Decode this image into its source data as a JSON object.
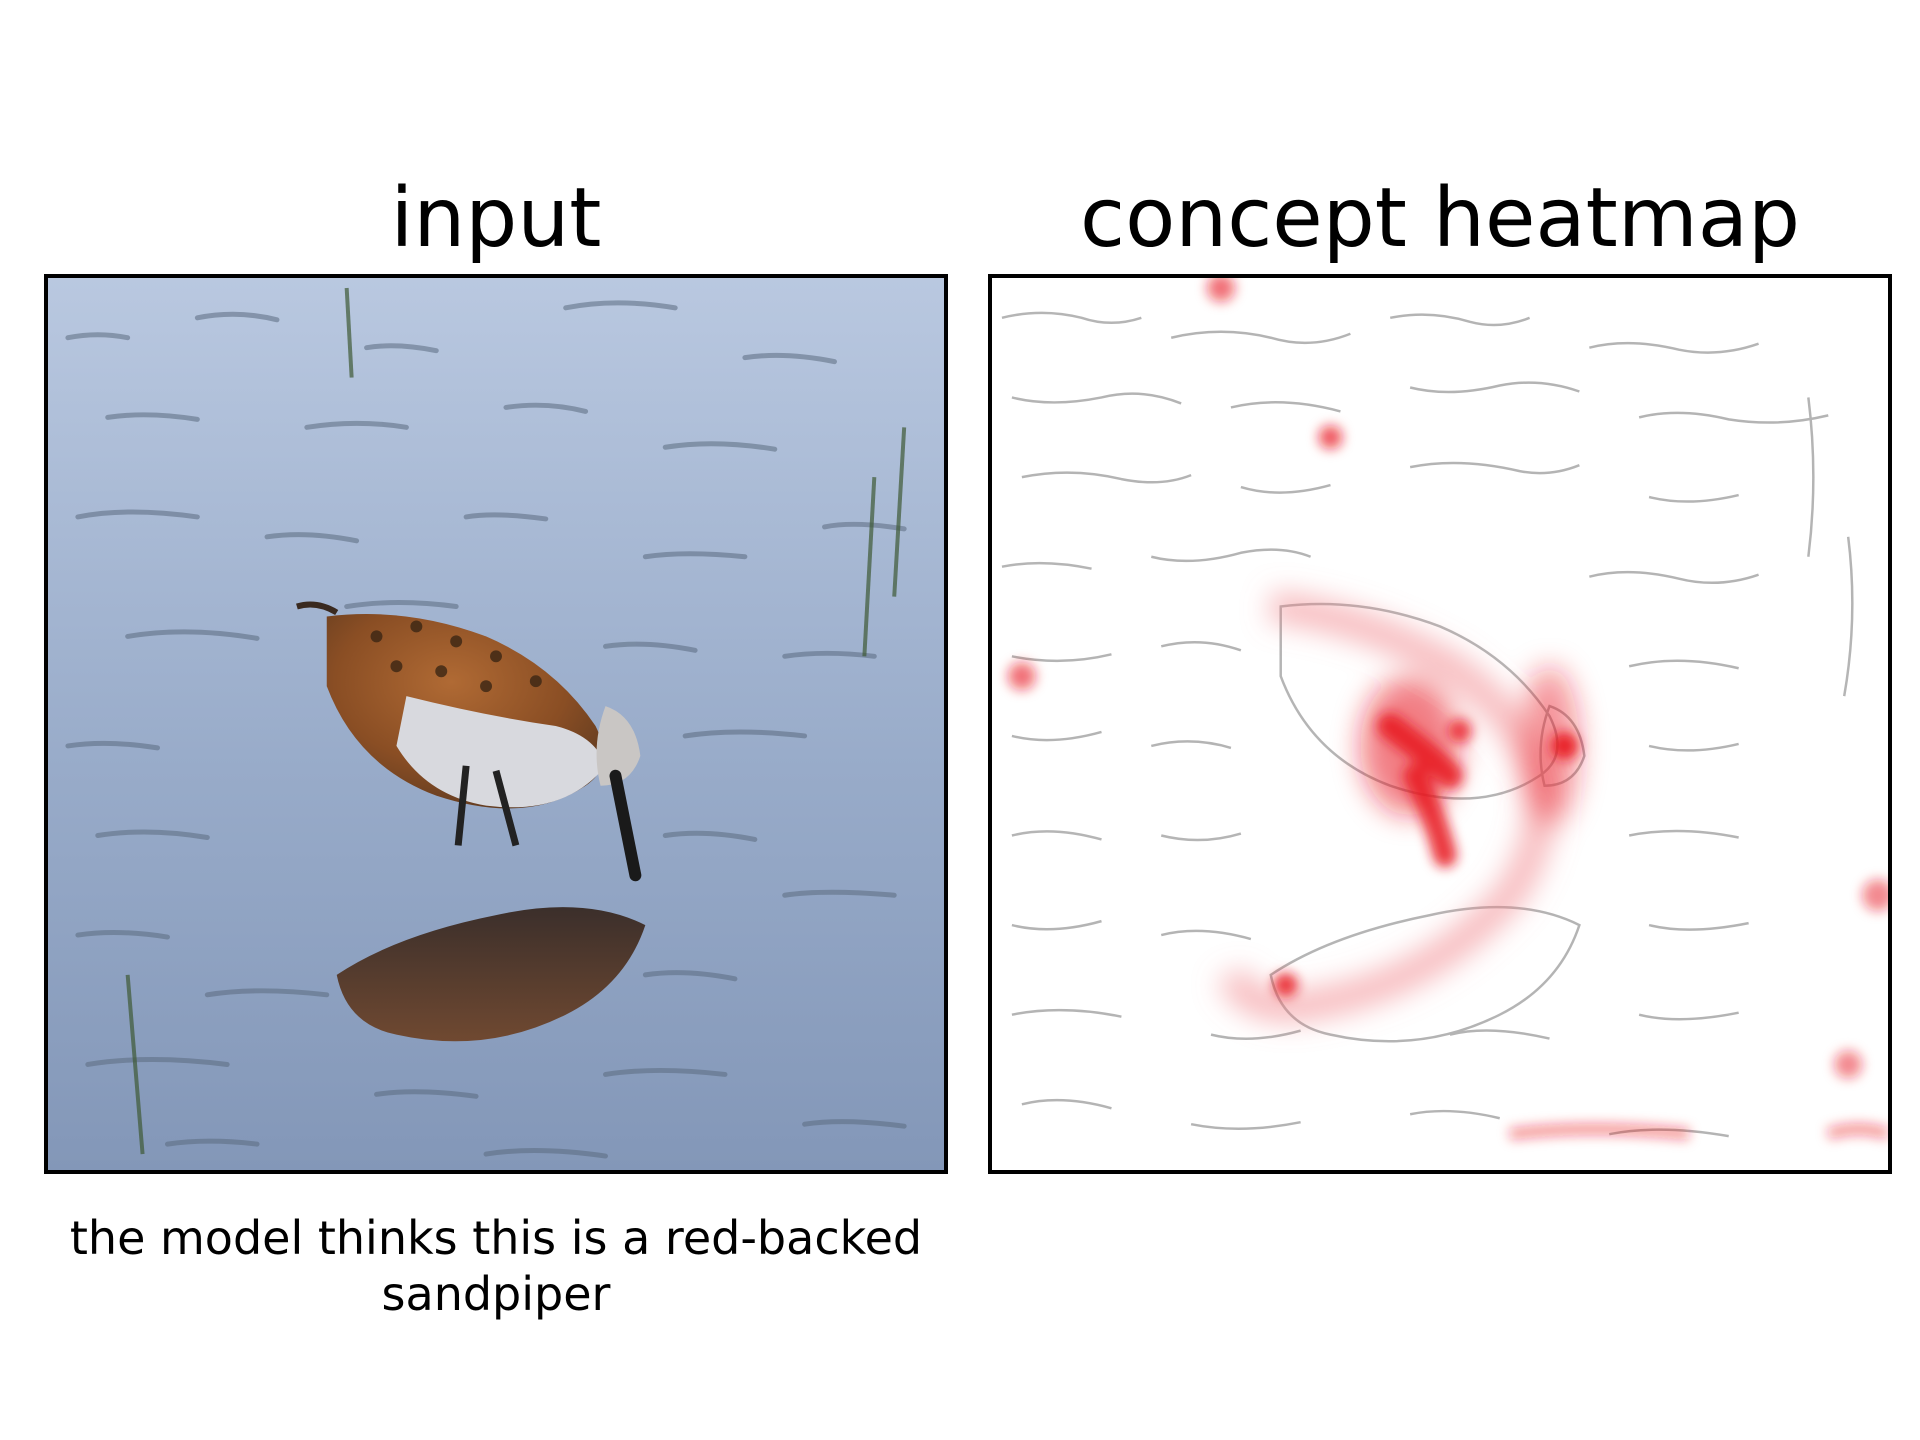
{
  "panels": {
    "left": {
      "title": "input",
      "image_subject": "sandpiper-photo"
    },
    "right": {
      "title": "concept heatmap",
      "image_subject": "heatmap-overlay"
    }
  },
  "caption": {
    "line1": "the model thinks this is a red-backed",
    "line2": "sandpiper"
  },
  "colors": {
    "water": "#8fa4c4",
    "water_light": "#b7c6de",
    "heat_red": "#e8141e",
    "edge_gray": "#a8a8a8",
    "frame": "#000000",
    "bird_back": "#9a5a2c",
    "bird_belly": "#d9d9dc"
  }
}
